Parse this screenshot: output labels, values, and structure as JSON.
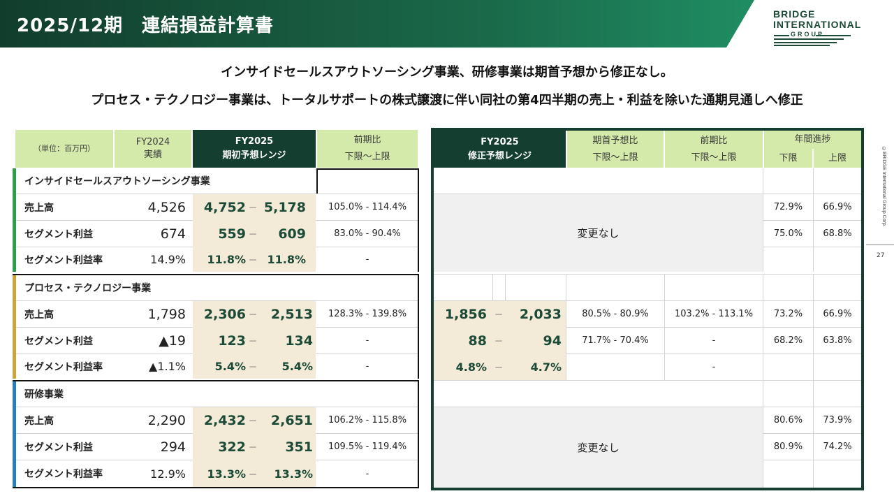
{
  "header": {
    "title": "2025/12期　連結損益計算書",
    "logo": {
      "line1": "BRIDGE",
      "line2": "INTERNATIONAL",
      "line3": "GROUP"
    }
  },
  "subtitles": [
    "インサイドセールスアウトソーシング事業、研修事業は期首予想から修正なし。",
    "プロセス・テクノロジー事業は、トータルサポートの株式譲渡に伴い同社の第4四半期の売上・利益を除いた通期見通しへ修正"
  ],
  "side_copyright": "©BRIDGE International Group Corp.",
  "page_number": "27",
  "left_header": {
    "unit": "（単位：百万円）",
    "fy2024_l1": "FY2024",
    "fy2024_l2": "実績",
    "fy2025_l1": "FY2025",
    "fy2025_l2": "期初予想レンジ",
    "yoy_l1": "前期比",
    "yoy_l2": "下限〜上限"
  },
  "right_header": {
    "fy2025_l1": "FY2025",
    "fy2025_l2": "修正予想レンジ",
    "vs_initial_l1": "期首予想比",
    "vs_initial_l2": "下限〜上限",
    "yoy_l1": "前期比",
    "yoy_l2": "下限〜上限",
    "progress_l1": "年間進捗",
    "progress_low": "下限",
    "progress_high": "上限"
  },
  "range_dash": "－",
  "no_change": "変更なし",
  "segments": [
    {
      "name": "インサイドセールスアウトソーシング事業",
      "color": "#2e9e4a",
      "rows": [
        {
          "label": "売上高",
          "fy2024": "4,526",
          "low": "4,752",
          "high": "5,178",
          "yoy": "105.0% - 114.4%",
          "prog_low": "72.9%",
          "prog_high": "66.9%"
        },
        {
          "label": "セグメント利益",
          "fy2024": "674",
          "low": "559",
          "high": "609",
          "yoy": "83.0% - 90.4%",
          "prog_low": "75.0%",
          "prog_high": "68.8%"
        },
        {
          "label": "セグメント利益率",
          "fy2024": "14.9%",
          "low": "11.8%",
          "high": "11.8%",
          "yoy": "-",
          "prog_low": "",
          "prog_high": ""
        }
      ]
    },
    {
      "name": "プロセス・テクノロジー事業",
      "color": "#c9a53c",
      "rows": [
        {
          "label": "売上高",
          "fy2024": "1,798",
          "low": "2,306",
          "high": "2,513",
          "yoy": "128.3% - 139.8%",
          "rev_low": "1,856",
          "rev_high": "2,033",
          "vs_initial": "80.5% - 80.9%",
          "rev_yoy": "103.2% - 113.1%",
          "prog_low": "73.2%",
          "prog_high": "66.9%"
        },
        {
          "label": "セグメント利益",
          "fy2024": "▲19",
          "low": "123",
          "high": "134",
          "yoy": "-",
          "rev_low": "88",
          "rev_high": "94",
          "vs_initial": "71.7% - 70.4%",
          "rev_yoy": "-",
          "prog_low": "68.2%",
          "prog_high": "63.8%"
        },
        {
          "label": "セグメント利益率",
          "fy2024": "▲1.1%",
          "low": "5.4%",
          "high": "5.4%",
          "yoy": "-",
          "rev_low": "4.8%",
          "rev_high": "4.7%",
          "vs_initial": "",
          "rev_yoy": "-",
          "prog_low": "",
          "prog_high": ""
        }
      ]
    },
    {
      "name": "研修事業",
      "color": "#2b7fb8",
      "rows": [
        {
          "label": "売上高",
          "fy2024": "2,290",
          "low": "2,432",
          "high": "2,651",
          "yoy": "106.2% - 115.8%",
          "prog_low": "80.6%",
          "prog_high": "73.9%"
        },
        {
          "label": "セグメント利益",
          "fy2024": "294",
          "low": "322",
          "high": "351",
          "yoy": "109.5% - 119.4%",
          "prog_low": "80.9%",
          "prog_high": "74.2%"
        },
        {
          "label": "セグメント利益率",
          "fy2024": "12.9%",
          "low": "13.3%",
          "high": "13.3%",
          "yoy": "-",
          "prog_low": "",
          "prog_high": ""
        }
      ]
    }
  ]
}
